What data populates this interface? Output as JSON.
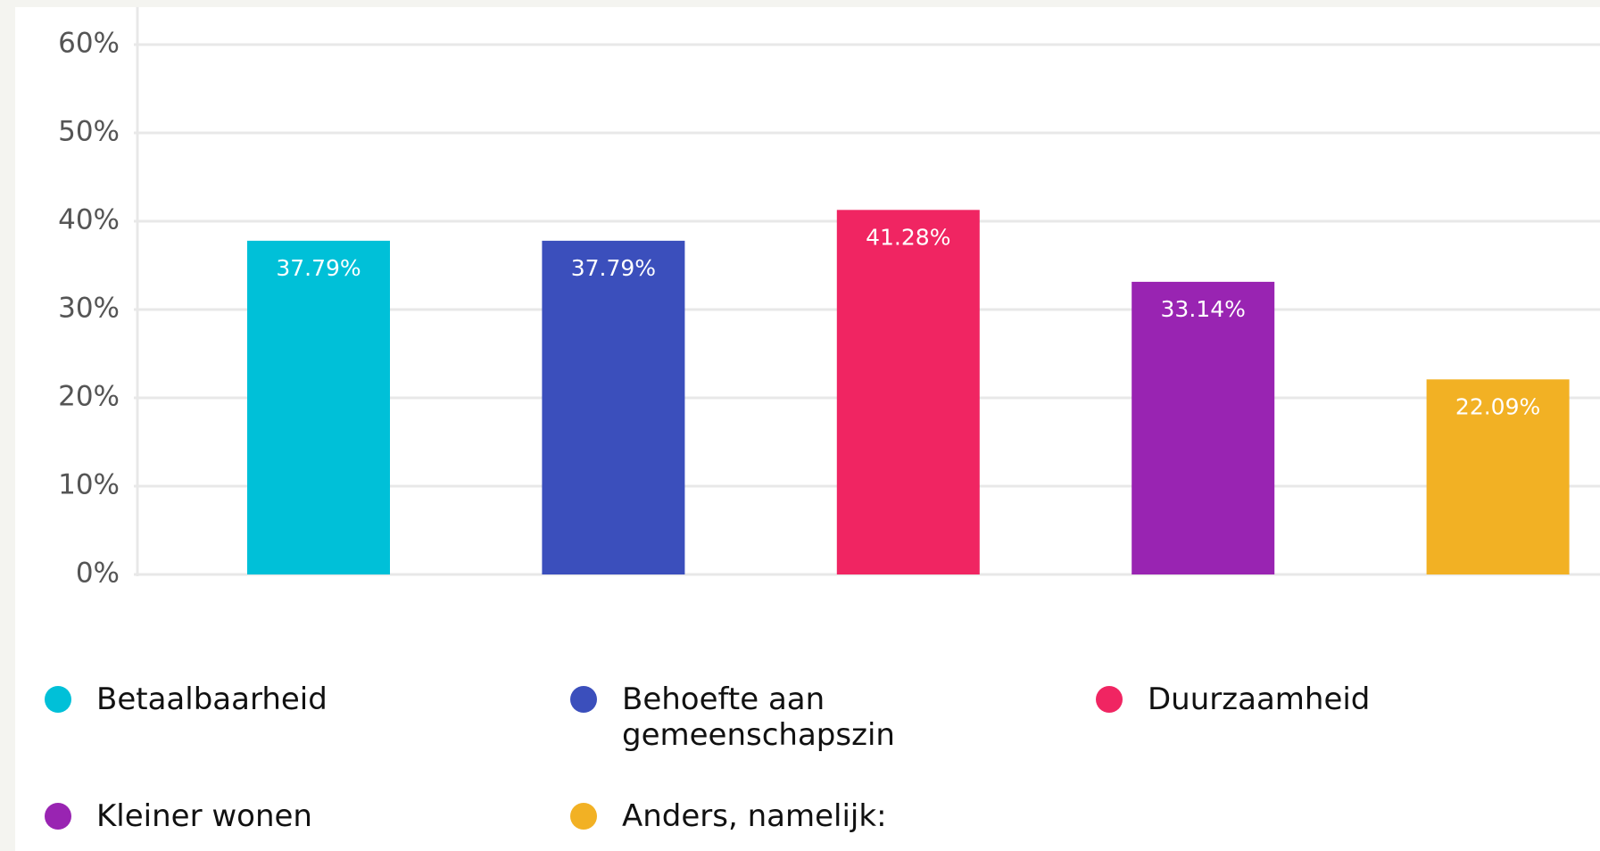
{
  "chart_data": {
    "type": "bar",
    "categories": [
      "Betaalbaarheid",
      "Behoefte aan gemeenschapszin",
      "Duurzaamheid",
      "Kleiner wonen",
      "Anders, namelijk:"
    ],
    "values": [
      37.79,
      37.79,
      41.28,
      33.14,
      22.09
    ],
    "value_labels": [
      "37.79%",
      "37.79%",
      "41.28%",
      "33.14%",
      "22.09%"
    ],
    "colors": [
      "#00c0d8",
      "#3b4fbc",
      "#f02562",
      "#9924b2",
      "#f2b124"
    ],
    "ylim": [
      0,
      60
    ],
    "yticks": [
      {
        "value": 0,
        "label": "0%"
      },
      {
        "value": 10,
        "label": "10%"
      },
      {
        "value": 20,
        "label": "20%"
      },
      {
        "value": 30,
        "label": "30%"
      },
      {
        "value": 40,
        "label": "40%"
      },
      {
        "value": 50,
        "label": "50%"
      },
      {
        "value": 60,
        "label": "60%"
      }
    ],
    "grid": true,
    "legend": "bottom"
  }
}
